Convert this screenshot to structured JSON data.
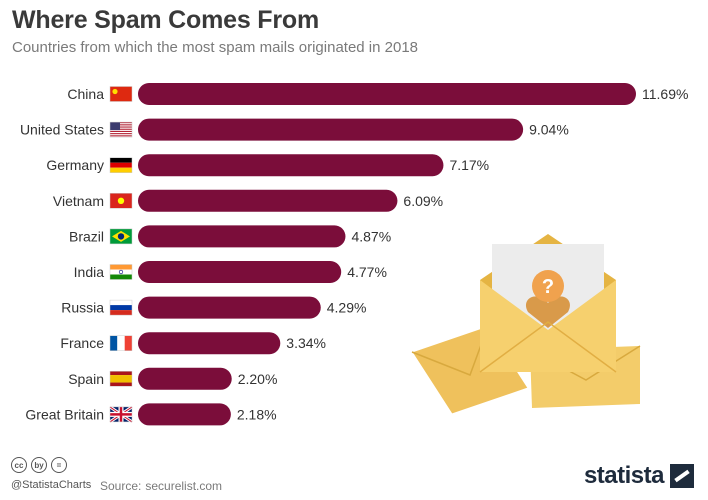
{
  "header": {
    "title": "Where Spam Comes From",
    "subtitle": "Countries from which the most spam mails originated in 2018"
  },
  "chart_data": {
    "type": "bar",
    "orientation": "horizontal",
    "categories": [
      "China",
      "United States",
      "Germany",
      "Vietnam",
      "Brazil",
      "India",
      "Russia",
      "France",
      "Spain",
      "Great Britain"
    ],
    "values": [
      11.69,
      9.04,
      7.17,
      6.09,
      4.87,
      4.77,
      4.29,
      3.34,
      2.2,
      2.18
    ],
    "value_labels": [
      "11.69%",
      "9.04%",
      "7.17%",
      "6.09%",
      "4.87%",
      "4.77%",
      "4.29%",
      "3.34%",
      "2.20%",
      "2.18%"
    ],
    "title": "Where Spam Comes From",
    "subtitle": "Countries from which the most spam mails originated in 2018",
    "xlabel": "",
    "ylabel": "",
    "unit": "%",
    "xlim": [
      0,
      11.69
    ],
    "grid": false,
    "legend": "none",
    "bar_color": "#7b0d3a",
    "flags": [
      "china-flag-icon",
      "usa-flag-icon",
      "germany-flag-icon",
      "vietnam-flag-icon",
      "brazil-flag-icon",
      "india-flag-icon",
      "russia-flag-icon",
      "france-flag-icon",
      "spain-flag-icon",
      "uk-flag-icon"
    ]
  },
  "footer": {
    "license_icons": [
      "cc",
      "by",
      "="
    ],
    "handle": "@StatistaCharts",
    "source_label": "Source:",
    "source": "securelist.com",
    "brand": "statista"
  },
  "colors": {
    "bar": "#7b0d3a",
    "text": "#333333",
    "envelope": "#f2c75c",
    "envelope_dark": "#e5b443",
    "letter": "#ececec",
    "heart": "#d99a4a"
  }
}
